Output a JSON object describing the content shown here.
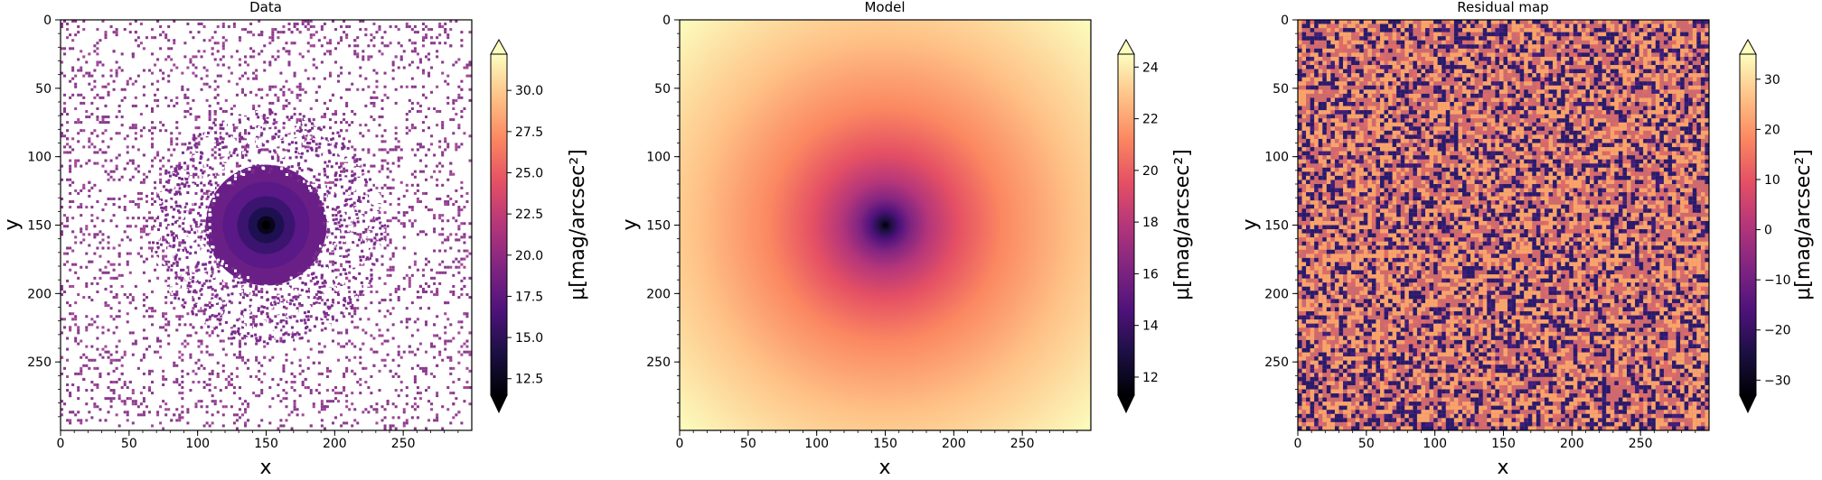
{
  "chart_data": [
    {
      "type": "heatmap",
      "title": "Data",
      "xlabel": "x",
      "ylabel": "y",
      "xlim": [
        0,
        300
      ],
      "ylim": [
        300,
        0
      ],
      "xticks": [
        0,
        50,
        100,
        150,
        200,
        250
      ],
      "yticks": [
        0,
        50,
        100,
        150,
        200,
        250
      ],
      "colormap": "magma",
      "colorbar": {
        "label": "μ[mag/arcsec²]",
        "range": [
          11.5,
          32.2
        ],
        "ticks": [
          12.5,
          15.0,
          17.5,
          20.0,
          22.5,
          25.0,
          27.5,
          30.0
        ],
        "tick_labels": [
          "12.5",
          "15.0",
          "17.5",
          "20.0",
          "22.5",
          "25.0",
          "27.5",
          "30.0"
        ],
        "extend": "both"
      },
      "content": "noisy galaxy profile centred at (150, 150); pixels fainter than the color range left white",
      "center": [
        150,
        150
      ]
    },
    {
      "type": "heatmap",
      "title": "Model",
      "xlabel": "x",
      "ylabel": "y",
      "xlim": [
        0,
        300
      ],
      "ylim": [
        300,
        0
      ],
      "xticks": [
        0,
        50,
        100,
        150,
        200,
        250
      ],
      "yticks": [
        0,
        50,
        100,
        150,
        200,
        250
      ],
      "colormap": "magma",
      "colorbar": {
        "label": "μ[mag/arcsec²]",
        "range": [
          11.3,
          24.5
        ],
        "ticks": [
          12,
          14,
          16,
          18,
          20,
          22,
          24
        ],
        "tick_labels": [
          "12",
          "14",
          "16",
          "18",
          "20",
          "22",
          "24"
        ],
        "extend": "both"
      },
      "content": "smooth radial surface-brightness model centred at (150, 150)",
      "center": [
        150,
        150
      ]
    },
    {
      "type": "heatmap",
      "title": "Residual map",
      "xlabel": "x",
      "ylabel": "y",
      "xlim": [
        0,
        300
      ],
      "ylim": [
        300,
        0
      ],
      "xticks": [
        0,
        50,
        100,
        150,
        200,
        250
      ],
      "yticks": [
        0,
        50,
        100,
        150,
        200,
        250
      ],
      "colormap": "magma",
      "colorbar": {
        "label": "μ[mag/arcsec²]",
        "range": [
          -33,
          35
        ],
        "ticks": [
          -30,
          -20,
          -10,
          0,
          10,
          20,
          30
        ],
        "tick_labels": [
          "−30",
          "−20",
          "−10",
          "0",
          "10",
          "20",
          "30"
        ],
        "extend": "both"
      },
      "content": "random noise residuals, mostly orange and dark-purple values"
    }
  ],
  "colors": {
    "magma": [
      "#000004",
      "#1c1044",
      "#4f127b",
      "#812581",
      "#b5367a",
      "#e55064",
      "#fb8761",
      "#fec287",
      "#fcfdbf"
    ],
    "background": "#ffffff",
    "axis": "#000000"
  }
}
